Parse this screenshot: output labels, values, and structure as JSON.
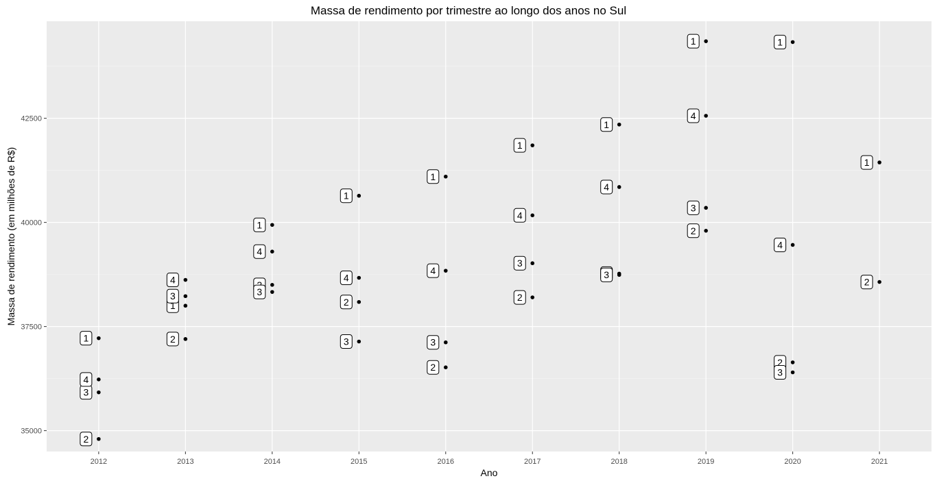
{
  "chart_data": {
    "type": "scatter",
    "title": "Massa de rendimento por trimestre ao longo dos anos no Sul",
    "xlabel": "Ano",
    "ylabel": "Massa de rendimento (em milhões de R$)",
    "x_ticks": [
      "2012",
      "2013",
      "2014",
      "2015",
      "2016",
      "2017",
      "2018",
      "2019",
      "2020",
      "2021"
    ],
    "y_ticks": [
      "35000",
      "37500",
      "40000",
      "42500"
    ],
    "xlim": [
      2011.4,
      2021.6
    ],
    "ylim": [
      34500,
      44830
    ],
    "grid": true,
    "legend": "none",
    "point_color": "#000000",
    "panel_color": "#ebebeb",
    "points": [
      {
        "year": 2012,
        "quarter": "1",
        "value": 37220
      },
      {
        "year": 2012,
        "quarter": "2",
        "value": 34800
      },
      {
        "year": 2012,
        "quarter": "3",
        "value": 35920
      },
      {
        "year": 2012,
        "quarter": "4",
        "value": 36230
      },
      {
        "year": 2013,
        "quarter": "1",
        "value": 38000
      },
      {
        "year": 2013,
        "quarter": "2",
        "value": 37200
      },
      {
        "year": 2013,
        "quarter": "3",
        "value": 38230
      },
      {
        "year": 2013,
        "quarter": "4",
        "value": 38620
      },
      {
        "year": 2014,
        "quarter": "1",
        "value": 39940
      },
      {
        "year": 2014,
        "quarter": "2",
        "value": 38500
      },
      {
        "year": 2014,
        "quarter": "3",
        "value": 38330
      },
      {
        "year": 2014,
        "quarter": "4",
        "value": 39300
      },
      {
        "year": 2015,
        "quarter": "1",
        "value": 40640
      },
      {
        "year": 2015,
        "quarter": "2",
        "value": 38090
      },
      {
        "year": 2015,
        "quarter": "3",
        "value": 37140
      },
      {
        "year": 2015,
        "quarter": "4",
        "value": 38670
      },
      {
        "year": 2016,
        "quarter": "1",
        "value": 41100
      },
      {
        "year": 2016,
        "quarter": "2",
        "value": 36520
      },
      {
        "year": 2016,
        "quarter": "3",
        "value": 37120
      },
      {
        "year": 2016,
        "quarter": "4",
        "value": 38840
      },
      {
        "year": 2017,
        "quarter": "1",
        "value": 41850
      },
      {
        "year": 2017,
        "quarter": "2",
        "value": 38200
      },
      {
        "year": 2017,
        "quarter": "3",
        "value": 39020
      },
      {
        "year": 2017,
        "quarter": "4",
        "value": 40170
      },
      {
        "year": 2018,
        "quarter": "1",
        "value": 42350
      },
      {
        "year": 2018,
        "quarter": "2",
        "value": 38770
      },
      {
        "year": 2018,
        "quarter": "3",
        "value": 38740
      },
      {
        "year": 2018,
        "quarter": "4",
        "value": 40850
      },
      {
        "year": 2019,
        "quarter": "1",
        "value": 44350
      },
      {
        "year": 2019,
        "quarter": "2",
        "value": 39800
      },
      {
        "year": 2019,
        "quarter": "3",
        "value": 40350
      },
      {
        "year": 2019,
        "quarter": "4",
        "value": 42560
      },
      {
        "year": 2020,
        "quarter": "1",
        "value": 44330
      },
      {
        "year": 2020,
        "quarter": "2",
        "value": 36640
      },
      {
        "year": 2020,
        "quarter": "3",
        "value": 36400
      },
      {
        "year": 2020,
        "quarter": "4",
        "value": 39460
      },
      {
        "year": 2021,
        "quarter": "1",
        "value": 41440
      },
      {
        "year": 2021,
        "quarter": "2",
        "value": 38570
      }
    ]
  }
}
